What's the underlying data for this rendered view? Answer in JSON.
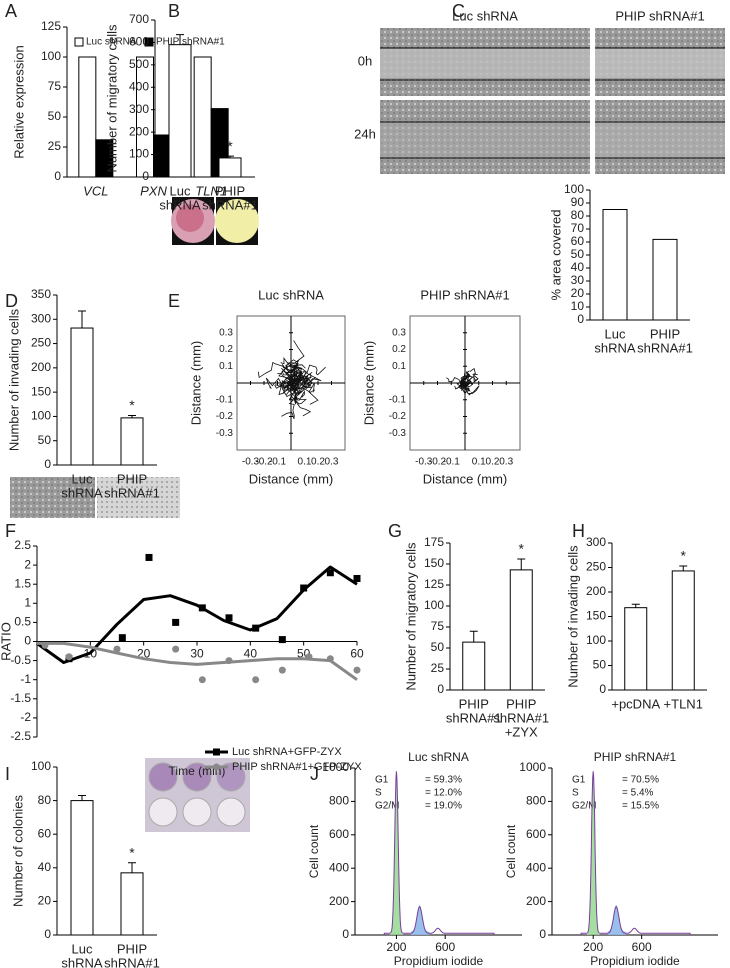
{
  "chart_data": [
    {
      "type": "bar",
      "panel": "A",
      "ylabel": "Relative expression",
      "italic_categories": true,
      "categories": [
        [
          "VCL"
        ],
        [
          "PXN"
        ],
        [
          "TLN1"
        ]
      ],
      "series": [
        {
          "name": "Luc shRNA",
          "color": "#ffffff",
          "values": [
            100,
            100,
            100
          ]
        },
        {
          "name": "PHIP shRNA#1",
          "color": "#000000",
          "values": [
            31,
            35,
            57
          ]
        }
      ],
      "ylim": [
        0,
        125
      ],
      "yticks": [
        0,
        25,
        50,
        75,
        100,
        125
      ]
    },
    {
      "type": "bar",
      "panel": "B",
      "ylabel": "Number of migratory cells",
      "categories": [
        [
          "Luc",
          "shRNA"
        ],
        [
          "PHIP",
          "shRNA#1"
        ]
      ],
      "series": [
        {
          "color": "#ffffff",
          "values": [
            590,
            85
          ],
          "errors": [
            45,
            8
          ]
        }
      ],
      "stars": [
        null,
        "*"
      ],
      "ylim": [
        0,
        700
      ],
      "yticks": [
        0,
        100,
        200,
        300,
        400,
        500,
        600,
        700
      ]
    },
    {
      "type": "bar",
      "panel": "C",
      "ylabel": "% area covered",
      "image_labels": {
        "columns": [
          "Luc shRNA",
          "PHIP shRNA#1"
        ],
        "rows": [
          "0h",
          "24h"
        ]
      },
      "categories": [
        [
          "Luc",
          "shRNA"
        ],
        [
          "PHIP",
          "shRNA#1"
        ]
      ],
      "series": [
        {
          "color": "#ffffff",
          "values": [
            85,
            62
          ]
        }
      ],
      "ylim": [
        0,
        100
      ],
      "yticks": [
        0,
        10,
        20,
        30,
        40,
        50,
        60,
        70,
        80,
        90,
        100
      ]
    },
    {
      "type": "bar",
      "panel": "D",
      "ylabel": "Number of invading cells",
      "categories": [
        [
          "Luc",
          "shRNA"
        ],
        [
          "PHIP",
          "shRNA#1"
        ]
      ],
      "series": [
        {
          "color": "#ffffff",
          "values": [
            282,
            97
          ],
          "errors": [
            35,
            5
          ]
        }
      ],
      "stars": [
        null,
        "*"
      ],
      "ylim": [
        0,
        350
      ],
      "yticks": [
        0,
        50,
        100,
        150,
        200,
        250,
        300,
        350
      ]
    },
    {
      "type": "scatter",
      "panel": "E",
      "title": "Luc shRNA",
      "xlabel": "Distance (mm)",
      "ylabel": "Distance (mm)",
      "xlim": [
        -0.4,
        0.4
      ],
      "ylim": [
        -0.4,
        0.4
      ],
      "xticks": [
        -0.3,
        -0.2,
        -0.1,
        0.1,
        0.2,
        0.3
      ],
      "yticks": [
        -0.3,
        -0.2,
        -0.1,
        0.1,
        0.2,
        0.3
      ]
    },
    {
      "type": "scatter",
      "title": "PHIP shRNA#1",
      "xlabel": "Distance (mm)",
      "ylabel": "Distance (mm)",
      "xlim": [
        -0.4,
        0.4
      ],
      "ylim": [
        -0.4,
        0.4
      ],
      "xticks": [
        -0.3,
        -0.2,
        -0.1,
        0.1,
        0.2,
        0.3
      ],
      "yticks": [
        -0.3,
        -0.2,
        -0.1,
        0.1,
        0.2,
        0.3
      ]
    },
    {
      "type": "line",
      "panel": "F",
      "ylabel": "RATIO",
      "xlabel": "Time (min)",
      "xlim": [
        0,
        60
      ],
      "xticks": [
        10,
        20,
        30,
        40,
        50,
        60
      ],
      "ylim": [
        -2.5,
        2.5
      ],
      "yticks": [
        -2.5,
        -2,
        -1.5,
        -1,
        -0.5,
        0,
        0.5,
        1,
        1.5,
        2,
        2.5
      ],
      "fit_x": [
        0,
        5,
        10,
        15,
        20,
        25,
        30,
        35,
        40,
        45,
        50,
        55,
        60
      ],
      "series": [
        {
          "name": "Luc shRNA+GFP-ZYX",
          "color": "#000000",
          "marker": "square",
          "x": [
            6,
            16,
            21,
            26,
            31,
            36,
            41,
            46,
            50,
            55,
            60
          ],
          "values": [
            -0.45,
            0.1,
            2.2,
            0.5,
            0.88,
            0.62,
            0.35,
            0.05,
            1.4,
            1.8,
            1.65
          ],
          "fit": [
            -0.05,
            -0.55,
            -0.3,
            0.45,
            1.1,
            1.2,
            0.95,
            0.55,
            0.3,
            0.6,
            1.35,
            1.95,
            1.5
          ]
        },
        {
          "name": "PHIP shRNA#1+GFP-ZYX",
          "color": "#888888",
          "marker": "circle",
          "x": [
            1.5,
            6,
            15,
            26,
            31,
            36,
            41,
            46,
            51,
            55,
            60
          ],
          "values": [
            -0.1,
            -0.4,
            -0.2,
            -0.2,
            -1.0,
            -0.5,
            -1.0,
            -0.75,
            -0.4,
            -0.45,
            -0.75
          ],
          "fit": [
            -0.05,
            -0.05,
            -0.15,
            -0.3,
            -0.45,
            -0.55,
            -0.6,
            -0.55,
            -0.5,
            -0.45,
            -0.45,
            -0.5,
            -1.0
          ]
        }
      ]
    },
    {
      "type": "bar",
      "panel": "G",
      "ylabel": "Number of migratory cells",
      "categories": [
        [
          "PHIP",
          "shRNA#1"
        ],
        [
          "PHIP",
          "shRNA#1",
          "+ZYX"
        ]
      ],
      "series": [
        {
          "color": "#ffffff",
          "values": [
            57,
            143
          ],
          "errors": [
            13,
            13
          ]
        }
      ],
      "stars": [
        null,
        "*"
      ],
      "ylim": [
        0,
        175
      ],
      "yticks": [
        0,
        25,
        50,
        75,
        100,
        125,
        150,
        175
      ]
    },
    {
      "type": "bar",
      "panel": "H",
      "ylabel": "Number of invading cells",
      "categories": [
        [
          "+pcDNA"
        ],
        [
          "+TLN1"
        ]
      ],
      "series": [
        {
          "color": "#ffffff",
          "values": [
            168,
            243
          ],
          "errors": [
            7,
            10
          ]
        }
      ],
      "stars": [
        null,
        "*"
      ],
      "ylim": [
        0,
        300
      ],
      "yticks": [
        0,
        50,
        100,
        150,
        200,
        250,
        300
      ]
    },
    {
      "type": "bar",
      "panel": "I",
      "ylabel": "Number of colonies",
      "categories": [
        [
          "Luc",
          "shRNA"
        ],
        [
          "PHIP",
          "shRNA#1"
        ]
      ],
      "series": [
        {
          "color": "#ffffff",
          "values": [
            80,
            37
          ],
          "errors": [
            3,
            6
          ]
        }
      ],
      "stars": [
        null,
        "*"
      ],
      "ylim": [
        0,
        100
      ],
      "yticks": [
        0,
        20,
        40,
        60,
        80,
        100
      ]
    },
    {
      "type": "cytometry",
      "panel": "J",
      "title": "Luc shRNA",
      "xlabel": "Propidium iodide",
      "ylabel": "Cell count",
      "xlim": [
        -140,
        1230
      ],
      "xticks": [
        200,
        600
      ],
      "ylim": [
        0,
        1000
      ],
      "yticks": [
        0,
        200,
        400,
        600,
        800,
        1000
      ],
      "phases": [
        {
          "name": "G1",
          "value": "= 59.3%"
        },
        {
          "name": "S",
          "value": "= 12.0%"
        },
        {
          "name": "G2/M",
          "value": "= 19.0%"
        }
      ]
    },
    {
      "type": "cytometry",
      "title": "PHIP shRNA#1",
      "xlabel": "Propidium iodide",
      "ylabel": "Cell count",
      "xlim": [
        -140,
        1230
      ],
      "xticks": [
        200,
        600
      ],
      "ylim": [
        0,
        1000
      ],
      "yticks": [
        0,
        200,
        400,
        600,
        800,
        1000
      ],
      "phases": [
        {
          "name": "G1",
          "value": "= 70.5%"
        },
        {
          "name": "S",
          "value": "= 5.4%"
        },
        {
          "name": "G2/M",
          "value": "= 15.5%"
        }
      ]
    }
  ]
}
